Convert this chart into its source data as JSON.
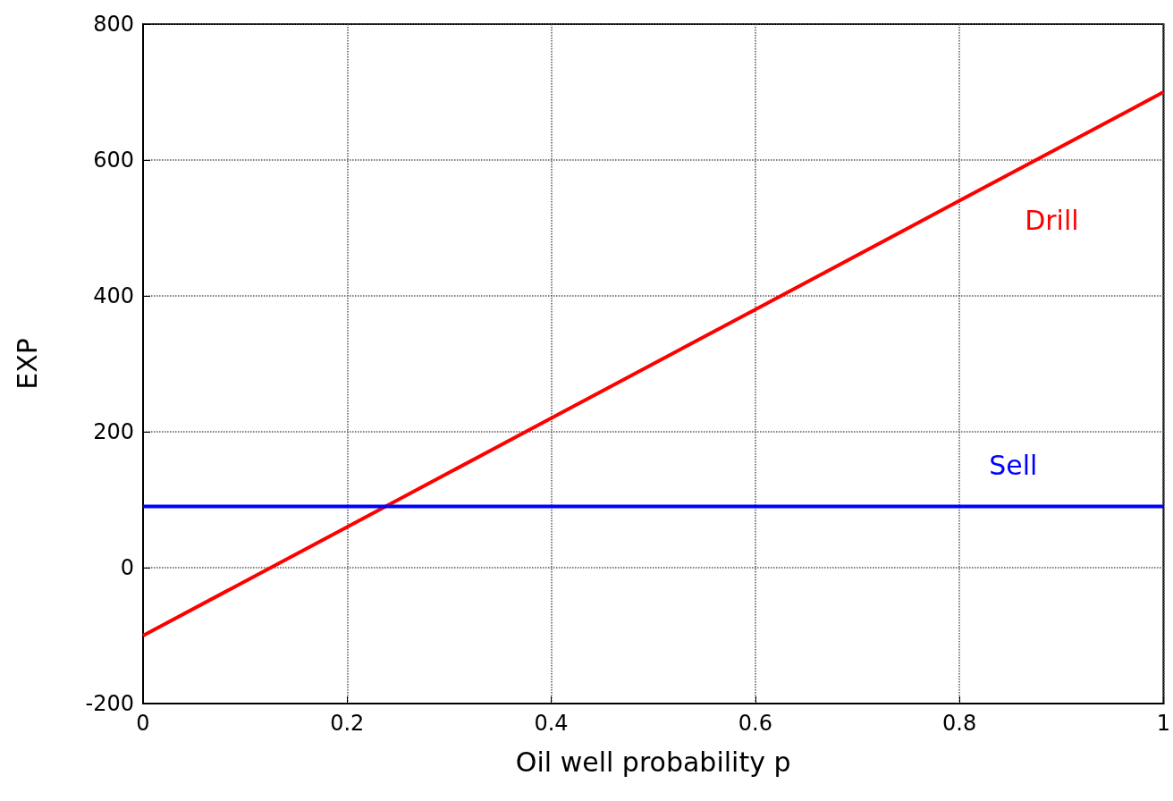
{
  "chart_data": {
    "type": "line",
    "xlabel": "Oil well probability p",
    "ylabel": "EXP",
    "series": [
      {
        "name": "Drill",
        "color": "#ff0000",
        "x": [
          0,
          0.2,
          0.4,
          0.6,
          0.8,
          1
        ],
        "values": [
          -100,
          60,
          220,
          380,
          540,
          700
        ]
      },
      {
        "name": "Sell",
        "color": "#0000ff",
        "x": [
          0,
          0.2,
          0.4,
          0.6,
          0.8,
          1
        ],
        "values": [
          90,
          90,
          90,
          90,
          90,
          90
        ]
      }
    ],
    "xlim": [
      0,
      1
    ],
    "xticks": [
      0,
      0.2,
      0.4,
      0.6,
      0.8,
      1
    ],
    "ylim": [
      -200,
      800
    ],
    "yticks": [
      -200,
      0,
      200,
      400,
      600,
      800
    ],
    "grid": true,
    "legend": false,
    "marker": "none",
    "line_style": "solid"
  }
}
